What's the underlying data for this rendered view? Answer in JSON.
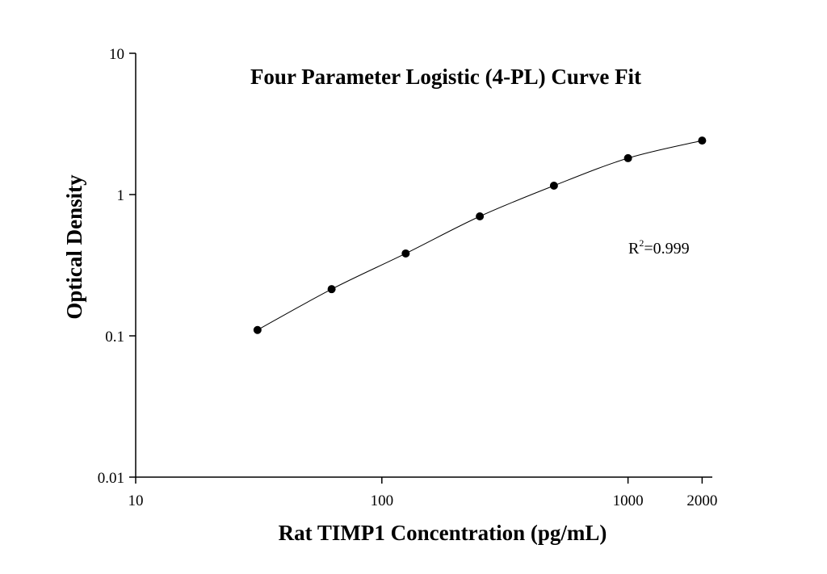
{
  "chart_data": {
    "type": "scatter",
    "title": "Four Parameter Logistic (4-PL) Curve Fit",
    "x_label": "Rat TIMP1 Concentration (pg/mL)",
    "y_label": "Optical Density",
    "annotation": [
      "R",
      "2",
      "=0.999"
    ],
    "x": [
      31.25,
      62.5,
      125,
      250,
      500,
      1000,
      2000
    ],
    "series": [
      {
        "color": "#000000",
        "values": [
          0.11,
          0.214,
          0.383,
          0.701,
          1.156,
          1.81,
          2.41
        ]
      }
    ],
    "x_log": true,
    "y_log": true,
    "xlim": [
      10,
      2200
    ],
    "ylim": [
      0.01,
      10
    ],
    "xticks": [
      10,
      100,
      1000,
      2000
    ],
    "yticks": [
      0.01,
      0.1,
      1,
      10
    ]
  }
}
